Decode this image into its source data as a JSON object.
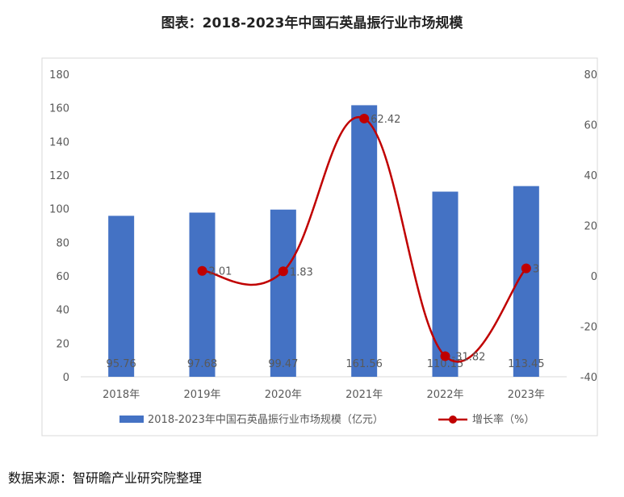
{
  "chart_data": {
    "type": "bar",
    "title": "图表：2018-2023年中国石英晶振行业市场规模",
    "categories": [
      "2018年",
      "2019年",
      "2020年",
      "2021年",
      "2022年",
      "2023年"
    ],
    "series": [
      {
        "name": "2018-2023年中国石英晶振行业市场规模（亿元）",
        "kind": "bar",
        "axis": "left",
        "color": "#4472C4",
        "values": [
          95.76,
          97.68,
          99.47,
          161.56,
          110.15,
          113.45
        ],
        "labels": [
          "95.76",
          "97.68",
          "99.47",
          "161.56",
          "110.15",
          "113.45"
        ]
      },
      {
        "name": "增长率（%）",
        "kind": "line",
        "axis": "right",
        "color": "#C00000",
        "values": [
          null,
          2.01,
          1.83,
          62.42,
          -31.82,
          3
        ],
        "labels": [
          "",
          "2.01",
          "1.83",
          "62.42",
          "-31.82",
          "3"
        ]
      }
    ],
    "ylim_left": [
      0,
      180
    ],
    "yticks_left": [
      0,
      20,
      40,
      60,
      80,
      100,
      120,
      140,
      160,
      180
    ],
    "ylim_right": [
      -40,
      80
    ],
    "yticks_right": [
      -40,
      -20,
      0,
      20,
      40,
      60,
      80
    ],
    "grid": false,
    "legend": "bottom"
  },
  "source": "数据来源：智研瞻产业研究院整理"
}
